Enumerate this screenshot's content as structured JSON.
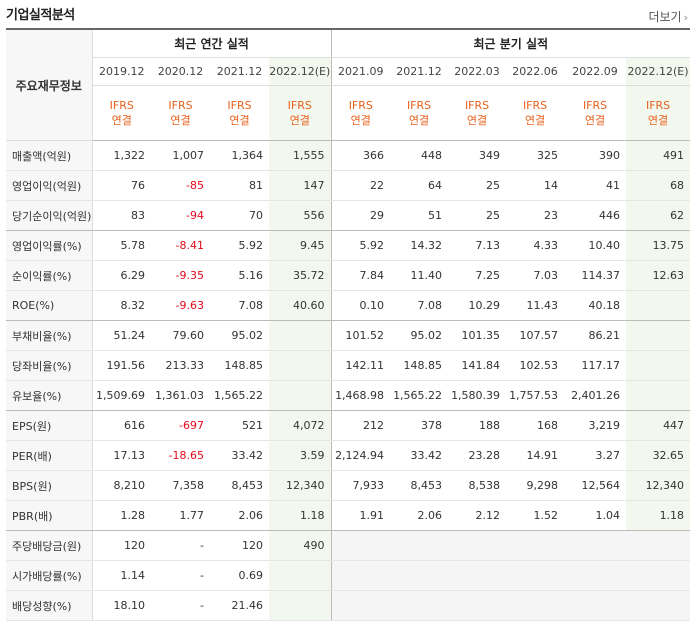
{
  "header": {
    "title": "기업실적분석",
    "more": "더보기"
  },
  "table": {
    "corner": "주요재무정보",
    "annual_header": "최근 연간 실적",
    "quarter_header": "최근 분기 실적",
    "annual_periods": [
      "2019.12",
      "2020.12",
      "2021.12",
      "2022.12(E)"
    ],
    "quarter_periods": [
      "2021.09",
      "2021.12",
      "2022.03",
      "2022.06",
      "2022.09",
      "2022.12(E)"
    ],
    "basis_top": "IFRS",
    "basis_bottom": "연결",
    "rows": [
      {
        "label": "매출액(억원)",
        "values": [
          "1,322",
          "1,007",
          "1,364",
          "1,555",
          "366",
          "448",
          "349",
          "325",
          "390",
          "491"
        ]
      },
      {
        "label": "영업이익(억원)",
        "values": [
          "76",
          "-85",
          "81",
          "147",
          "22",
          "64",
          "25",
          "14",
          "41",
          "68"
        ]
      },
      {
        "label": "당기순이익(억원)",
        "values": [
          "83",
          "-94",
          "70",
          "556",
          "29",
          "51",
          "25",
          "23",
          "446",
          "62"
        ]
      },
      {
        "label": "영업이익률(%)",
        "values": [
          "5.78",
          "-8.41",
          "5.92",
          "9.45",
          "5.92",
          "14.32",
          "7.13",
          "4.33",
          "10.40",
          "13.75"
        ]
      },
      {
        "label": "순이익률(%)",
        "values": [
          "6.29",
          "-9.35",
          "5.16",
          "35.72",
          "7.84",
          "11.40",
          "7.25",
          "7.03",
          "114.37",
          "12.63"
        ]
      },
      {
        "label": "ROE(%)",
        "values": [
          "8.32",
          "-9.63",
          "7.08",
          "40.60",
          "0.10",
          "7.08",
          "10.29",
          "11.43",
          "40.18",
          ""
        ]
      },
      {
        "label": "부채비율(%)",
        "values": [
          "51.24",
          "79.60",
          "95.02",
          "",
          "101.52",
          "95.02",
          "101.35",
          "107.57",
          "86.21",
          ""
        ]
      },
      {
        "label": "당좌비율(%)",
        "values": [
          "191.56",
          "213.33",
          "148.85",
          "",
          "142.11",
          "148.85",
          "141.84",
          "102.53",
          "117.17",
          ""
        ]
      },
      {
        "label": "유보율(%)",
        "values": [
          "1,509.69",
          "1,361.03",
          "1,565.22",
          "",
          "1,468.98",
          "1,565.22",
          "1,580.39",
          "1,757.53",
          "2,401.26",
          ""
        ]
      },
      {
        "label": "EPS(원)",
        "values": [
          "616",
          "-697",
          "521",
          "4,072",
          "212",
          "378",
          "188",
          "168",
          "3,219",
          "447"
        ]
      },
      {
        "label": "PER(배)",
        "values": [
          "17.13",
          "-18.65",
          "33.42",
          "3.59",
          "2,124.94",
          "33.42",
          "23.28",
          "14.91",
          "3.27",
          "32.65"
        ]
      },
      {
        "label": "BPS(원)",
        "values": [
          "8,210",
          "7,358",
          "8,453",
          "12,340",
          "7,933",
          "8,453",
          "8,538",
          "9,298",
          "12,564",
          "12,340"
        ]
      },
      {
        "label": "PBR(배)",
        "values": [
          "1.28",
          "1.77",
          "2.06",
          "1.18",
          "1.91",
          "2.06",
          "2.12",
          "1.52",
          "1.04",
          "1.18"
        ]
      },
      {
        "label": "주당배당금(원)",
        "values": [
          "120",
          "-",
          "120",
          "490",
          "",
          "",
          "",
          "",
          "",
          ""
        ]
      },
      {
        "label": "시가배당률(%)",
        "values": [
          "1.14",
          "-",
          "0.69",
          "",
          "",
          "",
          "",
          "",
          "",
          ""
        ]
      },
      {
        "label": "배당성향(%)",
        "values": [
          "18.10",
          "-",
          "21.46",
          "",
          "",
          "",
          "",
          "",
          "",
          ""
        ]
      }
    ]
  }
}
